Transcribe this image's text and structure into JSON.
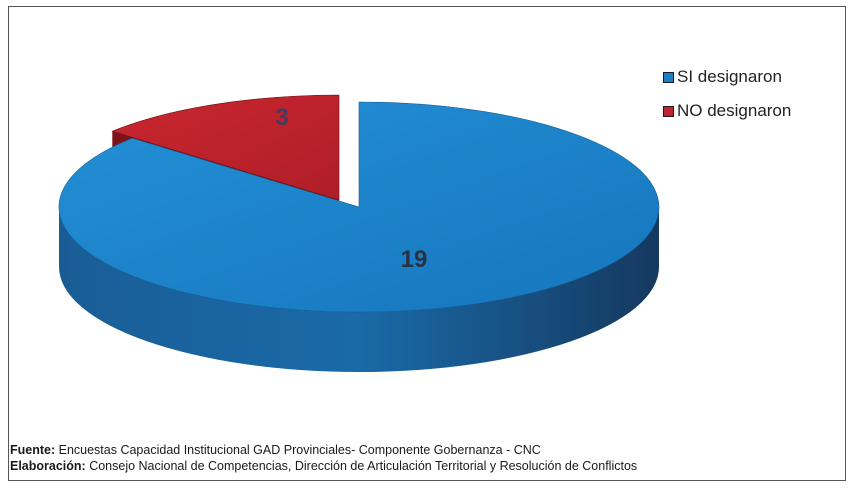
{
  "chart_data": {
    "type": "pie",
    "title": "",
    "three_d": true,
    "exploded_slice": "NO designaron",
    "legend_position": "top-right",
    "slices": [
      {
        "label": "SI designaron",
        "value": 19,
        "color": "#1b7fc6"
      },
      {
        "label": "NO designaron",
        "value": 3,
        "color": "#c0232d"
      }
    ]
  },
  "footer": {
    "source_label": "Fuente:",
    "source_text": " Encuestas Capacidad Institucional GAD Provinciales- Componente Gobernanza - CNC",
    "credit_label": "Elaboración:",
    "credit_text": " Consejo Nacional de Competencias, Dirección de Articulación Territorial y Resolución de Conflictos"
  }
}
